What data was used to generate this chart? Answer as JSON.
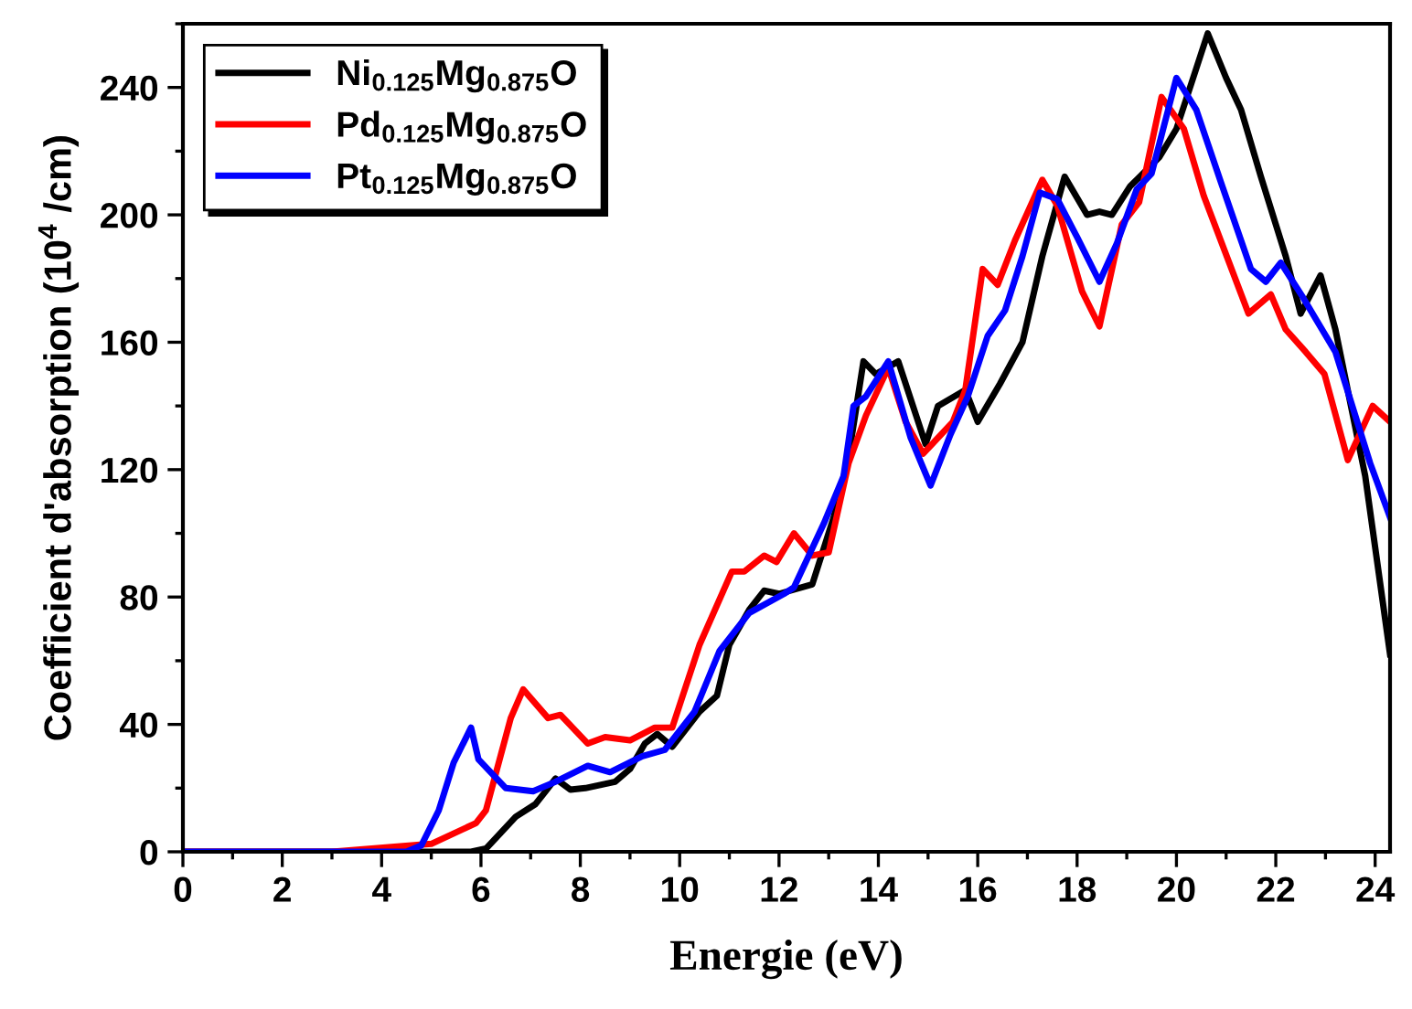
{
  "chart_data": {
    "type": "line",
    "xlabel": "Energie (eV)",
    "ylabel": "Coefficient d'absorption (10$^{4}$ /cm)",
    "xlim": [
      0,
      24.3
    ],
    "xticks": [
      0,
      2,
      4,
      6,
      8,
      10,
      12,
      14,
      16,
      18,
      20,
      22,
      24
    ],
    "ylim": [
      0,
      260
    ],
    "yticks": [
      0,
      40,
      80,
      120,
      160,
      200,
      240
    ],
    "grid": false,
    "legend": "top left",
    "marker": "none",
    "line_style": "solid",
    "series": [
      {
        "name": "Ni$_{0.125}$Mg$_{0.875}$O",
        "color": "#000000",
        "x": [
          0,
          5.8,
          6.1,
          6.4,
          6.7,
          7.1,
          7.3,
          7.5,
          7.8,
          8.1,
          8.7,
          9.0,
          9.3,
          9.55,
          9.85,
          10.4,
          10.75,
          11.0,
          11.4,
          11.7,
          12.0,
          12.67,
          13.1,
          13.4,
          13.7,
          13.95,
          14.4,
          14.95,
          15.2,
          15.75,
          16.0,
          16.45,
          16.9,
          17.3,
          17.75,
          18.2,
          18.45,
          18.7,
          19.07,
          19.65,
          20.0,
          20.4,
          20.63,
          21.0,
          21.3,
          21.7,
          22.2,
          22.5,
          22.9,
          23.2,
          23.8,
          24.3
        ],
        "values": [
          0,
          0,
          1,
          6,
          11,
          15,
          19,
          23,
          19.5,
          20,
          22,
          26,
          34,
          37,
          33,
          44,
          49,
          65,
          76,
          82,
          81,
          84,
          105,
          124,
          154,
          150,
          154,
          128,
          140,
          145,
          135,
          147,
          160,
          187,
          212,
          200,
          201,
          200,
          209,
          218,
          227,
          246,
          257,
          243,
          233,
          212,
          187,
          169,
          181,
          164,
          118,
          62
        ]
      },
      {
        "name": "Pd$_{0.125}$Mg$_{0.875}$O",
        "color": "#ff0000",
        "x": [
          0,
          3,
          4.2,
          5.0,
          5.9,
          6.1,
          6.6,
          6.85,
          7.35,
          7.6,
          8.15,
          8.5,
          9.0,
          9.5,
          9.85,
          10.4,
          11.05,
          11.3,
          11.7,
          11.95,
          12.3,
          12.67,
          13.0,
          13.4,
          13.75,
          14.2,
          14.55,
          14.9,
          15.5,
          15.75,
          16.1,
          16.4,
          16.75,
          17.3,
          17.6,
          18.1,
          18.45,
          18.9,
          19.25,
          19.7,
          20.15,
          20.55,
          21.45,
          21.9,
          22.2,
          22.6,
          22.98,
          23.45,
          23.95,
          24.3
        ],
        "values": [
          0,
          0,
          1.5,
          2.5,
          9,
          13,
          42,
          51,
          42,
          43,
          34,
          36,
          35,
          39,
          39,
          65,
          88,
          88,
          93,
          91,
          100,
          93,
          94,
          122,
          137,
          152,
          135,
          125,
          135,
          145,
          183,
          178,
          192,
          211,
          203,
          176,
          165,
          197,
          204,
          237,
          227,
          206,
          169,
          175,
          164,
          157,
          150,
          123,
          140,
          135
        ]
      },
      {
        "name": "Pt$_{0.125}$Mg$_{0.875}$O",
        "color": "#0000ff",
        "x": [
          0,
          4.5,
          4.8,
          5.15,
          5.45,
          5.8,
          5.95,
          6.5,
          7.05,
          7.5,
          8.15,
          8.6,
          9.25,
          9.7,
          10.3,
          10.8,
          11.4,
          12.1,
          12.3,
          12.9,
          13.3,
          13.5,
          13.75,
          14.2,
          14.65,
          15.05,
          15.45,
          15.8,
          16.2,
          16.55,
          16.9,
          17.25,
          17.6,
          18.0,
          18.45,
          18.8,
          19.2,
          19.5,
          20.0,
          20.4,
          20.9,
          21.5,
          21.8,
          22.1,
          22.55,
          23.2,
          23.9,
          24.3
        ],
        "values": [
          0,
          0,
          2,
          13,
          28,
          39,
          29,
          20,
          19,
          22,
          27,
          25,
          30,
          32,
          44,
          63,
          75,
          81,
          83,
          103,
          118,
          140,
          143,
          154,
          130,
          115,
          131,
          143,
          162,
          170,
          187,
          207,
          205,
          193,
          179,
          191,
          208,
          213,
          243,
          233,
          210,
          183,
          179,
          185,
          174,
          157,
          122,
          105
        ]
      }
    ]
  }
}
